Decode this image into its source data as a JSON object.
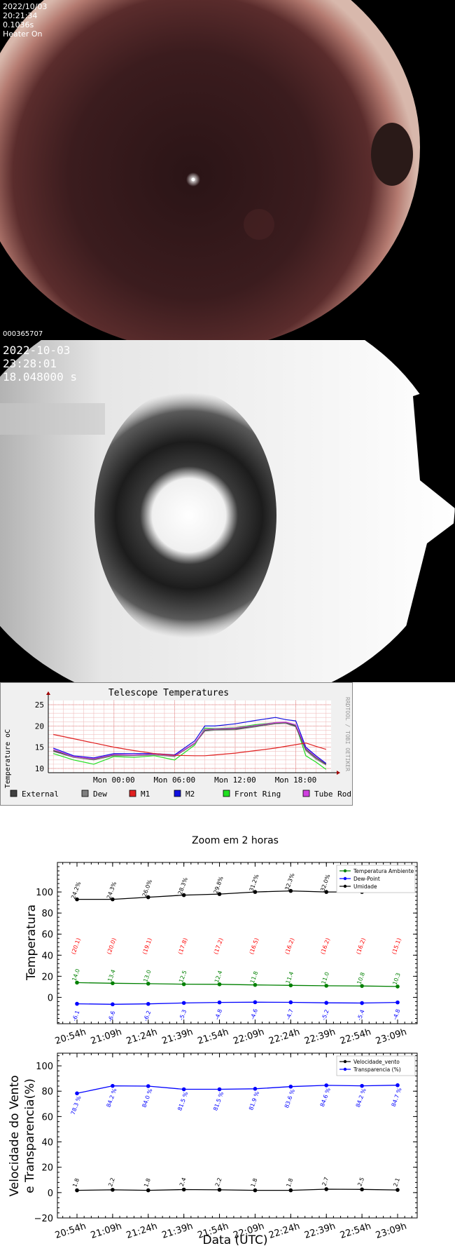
{
  "camera1": {
    "date": "2022/10/03",
    "time": "20:21:34",
    "exposure": "0.1036s",
    "heater": "Heater On",
    "frame_id": "000365707"
  },
  "camera2": {
    "date": "2022-10-03",
    "time": "23:28:01",
    "exposure": "18.048000 s"
  },
  "telescope_chart": {
    "title": "Telescope Temperatures",
    "ylabel": "Temperature oC",
    "side_label": "RRDTOOL / TOBI OETIKER",
    "yticks": [
      "25",
      "20",
      "15",
      "10"
    ],
    "xticks": [
      "Mon 00:00",
      "Mon 06:00",
      "Mon 12:00",
      "Mon 18:00"
    ],
    "legend": [
      {
        "name": "External",
        "color": "#404040"
      },
      {
        "name": "Dew",
        "color": "#808080"
      },
      {
        "name": "M1",
        "color": "#e02020"
      },
      {
        "name": "M2",
        "color": "#1010e0"
      },
      {
        "name": "Front Ring",
        "color": "#20e020"
      },
      {
        "name": "Tube Rod",
        "color": "#d040e0"
      }
    ]
  },
  "chart_data": [
    {
      "type": "line",
      "title": "Telescope Temperatures",
      "ylabel": "Temperature oC",
      "x_hours": [
        -6,
        -4,
        -2,
        0,
        2,
        4,
        6,
        8,
        9,
        10,
        12,
        14,
        16,
        17,
        18,
        19,
        20,
        21
      ],
      "ylim": [
        9,
        26
      ],
      "series": [
        {
          "name": "External",
          "values": [
            14.2,
            12.8,
            12.2,
            13.2,
            13.2,
            13.4,
            13.0,
            16.0,
            19.0,
            19.2,
            19.3,
            20.0,
            20.7,
            20.8,
            20.0,
            14.5,
            12.5,
            11.0
          ]
        },
        {
          "name": "Dew",
          "values": [
            14.0,
            12.6,
            12.0,
            13.0,
            13.0,
            13.2,
            12.8,
            15.8,
            18.8,
            19.0,
            19.1,
            19.8,
            20.5,
            20.6,
            19.8,
            14.2,
            12.2,
            10.8
          ]
        },
        {
          "name": "M1",
          "values": [
            18.0,
            17.0,
            16.0,
            15.0,
            14.2,
            13.5,
            13.1,
            13.0,
            13.0,
            13.2,
            13.6,
            14.2,
            14.8,
            15.2,
            15.6,
            16.0,
            15.2,
            14.5
          ]
        },
        {
          "name": "M2",
          "values": [
            14.8,
            13.0,
            12.5,
            13.5,
            13.5,
            13.5,
            13.2,
            16.5,
            20.0,
            20.0,
            20.5,
            21.3,
            22.0,
            21.5,
            21.2,
            15.0,
            13.0,
            11.2
          ]
        },
        {
          "name": "Front Ring",
          "values": [
            13.5,
            12.0,
            11.0,
            12.8,
            12.6,
            13.0,
            12.0,
            15.5,
            19.5,
            19.4,
            19.6,
            20.3,
            20.8,
            20.8,
            20.2,
            13.0,
            11.5,
            9.8
          ]
        },
        {
          "name": "Tube Rod",
          "values": [
            14.5,
            12.8,
            12.3,
            13.3,
            13.2,
            13.4,
            13.0,
            16.0,
            19.2,
            19.3,
            19.5,
            20.1,
            20.8,
            20.9,
            20.3,
            14.8,
            12.8,
            11.2
          ]
        }
      ]
    },
    {
      "type": "line",
      "title": "Zoom em 2 horas",
      "ylabel": "Temperatura",
      "categories": [
        "20:54h",
        "21:09h",
        "21:24h",
        "21:39h",
        "21:54h",
        "22:09h",
        "22:24h",
        "22:39h",
        "22:54h",
        "23:09h"
      ],
      "ylim": [
        -25,
        128
      ],
      "yticks": [
        "100",
        "80",
        "60",
        "40",
        "20",
        "0"
      ],
      "series": [
        {
          "name": "Temperatura Ambiente",
          "color": "#008000",
          "values": [
            14.0,
            13.4,
            13.0,
            12.5,
            12.4,
            11.8,
            11.4,
            11.0,
            10.8,
            10.3
          ],
          "labels": [
            "14.0",
            "13.4",
            "13.0",
            "12.5",
            "12.4",
            "11.8",
            "11.4",
            "11.0",
            "10.8",
            "10.3"
          ]
        },
        {
          "name": "Dew-Point",
          "color": "#0000ff",
          "values": [
            -6.1,
            -6.6,
            -6.2,
            -5.3,
            -4.8,
            -4.6,
            -4.7,
            -5.2,
            -5.4,
            -4.8
          ],
          "labels": [
            "-6.1",
            "-6.6",
            "-6.2",
            "-5.3",
            "-4.8",
            "-4.6",
            "-4.7",
            "-5.2",
            "-5.4",
            "-4.8"
          ]
        },
        {
          "name": "Umidade",
          "color": "#000000",
          "values": [
            93,
            93,
            95,
            97,
            98,
            100,
            101,
            100,
            100,
            103
          ],
          "labels": [
            "24.2%",
            "24.3%",
            "26.0%",
            "28.3%",
            "29.8%",
            "31.2%",
            "32.3%",
            "32.0%",
            "31.6%",
            "34.0%"
          ]
        }
      ],
      "red_labels": [
        "(20.1)",
        "(20.0)",
        "(19.1)",
        "(17.8)",
        "(17.2)",
        "(16.5)",
        "(16.2)",
        "(16.2)",
        "(16.2)",
        "(15.1)"
      ]
    },
    {
      "type": "line",
      "xlabel": "Data (UTC)",
      "ylabel": "Velocidade do Vento e Transparencia(%)",
      "categories": [
        "20:54h",
        "21:09h",
        "21:24h",
        "21:39h",
        "21:54h",
        "22:09h",
        "22:24h",
        "22:39h",
        "22:54h",
        "23:09h"
      ],
      "ylim": [
        -20,
        110
      ],
      "yticks": [
        "100",
        "80",
        "60",
        "40",
        "20",
        "0",
        "−20"
      ],
      "series": [
        {
          "name": "Velocidade_vento",
          "color": "#000000",
          "values": [
            1.8,
            2.2,
            1.8,
            2.4,
            2.2,
            1.8,
            1.8,
            2.7,
            2.5,
            2.1
          ],
          "labels": [
            "1.8",
            "2.2",
            "1.8",
            "2.4",
            "2.2",
            "1.8",
            "1.8",
            "2.7",
            "2.5",
            "2.1"
          ]
        },
        {
          "name": "Transparencia (%)",
          "color": "#0000ff",
          "values": [
            78.3,
            84.2,
            84.0,
            81.5,
            81.5,
            81.9,
            83.6,
            84.6,
            84.2,
            84.7
          ],
          "labels": [
            "78.3 %",
            "84.2 %",
            "84.0 %",
            "81.5 %",
            "81.5 %",
            "81.9 %",
            "83.6 %",
            "84.6 %",
            "84.2 %",
            "84.7 %"
          ]
        }
      ]
    }
  ]
}
